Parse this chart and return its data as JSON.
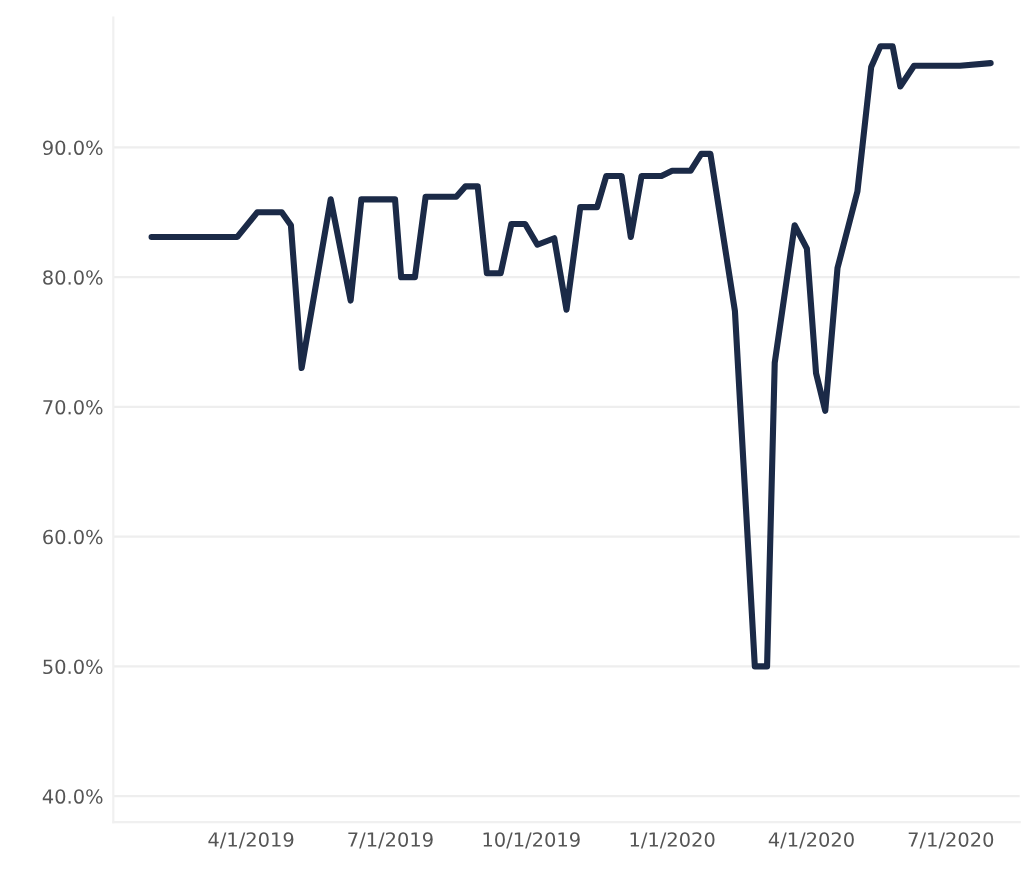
{
  "chart_data": {
    "type": "line",
    "x": [
      "2019-01-26",
      "2019-03-23",
      "2019-04-05",
      "2019-04-21",
      "2019-04-27",
      "2019-05-04",
      "2019-05-23",
      "2019-06-05",
      "2019-06-12",
      "2019-07-04",
      "2019-07-08",
      "2019-07-17",
      "2019-07-24",
      "2019-08-13",
      "2019-08-19",
      "2019-08-27",
      "2019-09-02",
      "2019-09-11",
      "2019-09-18",
      "2019-09-27",
      "2019-10-05",
      "2019-10-16",
      "2019-10-24",
      "2019-11-02",
      "2019-11-13",
      "2019-11-19",
      "2019-11-29",
      "2019-12-05",
      "2019-12-12",
      "2019-12-25",
      "2020-01-01",
      "2020-01-13",
      "2020-01-20",
      "2020-01-26",
      "2020-02-11",
      "2020-02-24",
      "2020-03-03",
      "2020-03-08",
      "2020-03-21",
      "2020-03-29",
      "2020-04-04",
      "2020-04-10",
      "2020-04-18",
      "2020-05-01",
      "2020-05-10",
      "2020-05-16",
      "2020-05-24",
      "2020-05-29",
      "2020-06-07",
      "2020-06-18",
      "2020-07-07",
      "2020-07-27"
    ],
    "series": [
      {
        "color": "#1b2a47",
        "values": [
          83.1,
          83.1,
          85,
          85,
          84,
          73,
          86,
          78.2,
          86,
          86,
          80,
          80,
          86.2,
          86.2,
          87,
          87,
          80.3,
          80.3,
          84.1,
          84.1,
          82.5,
          83,
          77.5,
          85.4,
          85.4,
          87.8,
          87.8,
          83.1,
          87.8,
          87.8,
          88.2,
          88.2,
          89.5,
          89.5,
          77.4,
          50,
          50,
          73.4,
          84,
          82.2,
          72.6,
          69.7,
          80.7,
          86.6,
          96.2,
          97.8,
          97.8,
          94.7,
          96.3,
          96.3,
          96.3,
          96.5
        ]
      }
    ],
    "xlim": [
      "2019-01-01",
      "2020-08-15"
    ],
    "xticks": [
      {
        "value": "2019-04-01",
        "label": "4/1/2019"
      },
      {
        "value": "2019-07-01",
        "label": "7/1/2019"
      },
      {
        "value": "2019-10-01",
        "label": "10/1/2019"
      },
      {
        "value": "2020-01-01",
        "label": "1/1/2020"
      },
      {
        "value": "2020-04-01",
        "label": "4/1/2020"
      },
      {
        "value": "2020-07-01",
        "label": "7/1/2020"
      }
    ],
    "ylim": [
      38,
      100
    ],
    "yticks": [
      {
        "value": 40,
        "label": "40.0%"
      },
      {
        "value": 50,
        "label": "50.0%"
      },
      {
        "value": 60,
        "label": "60.0%"
      },
      {
        "value": 70,
        "label": "70.0%"
      },
      {
        "value": 80,
        "label": "80.0%"
      },
      {
        "value": 90,
        "label": "90.0%"
      }
    ],
    "grid": "y",
    "marker": "none",
    "line_style": "solid"
  }
}
